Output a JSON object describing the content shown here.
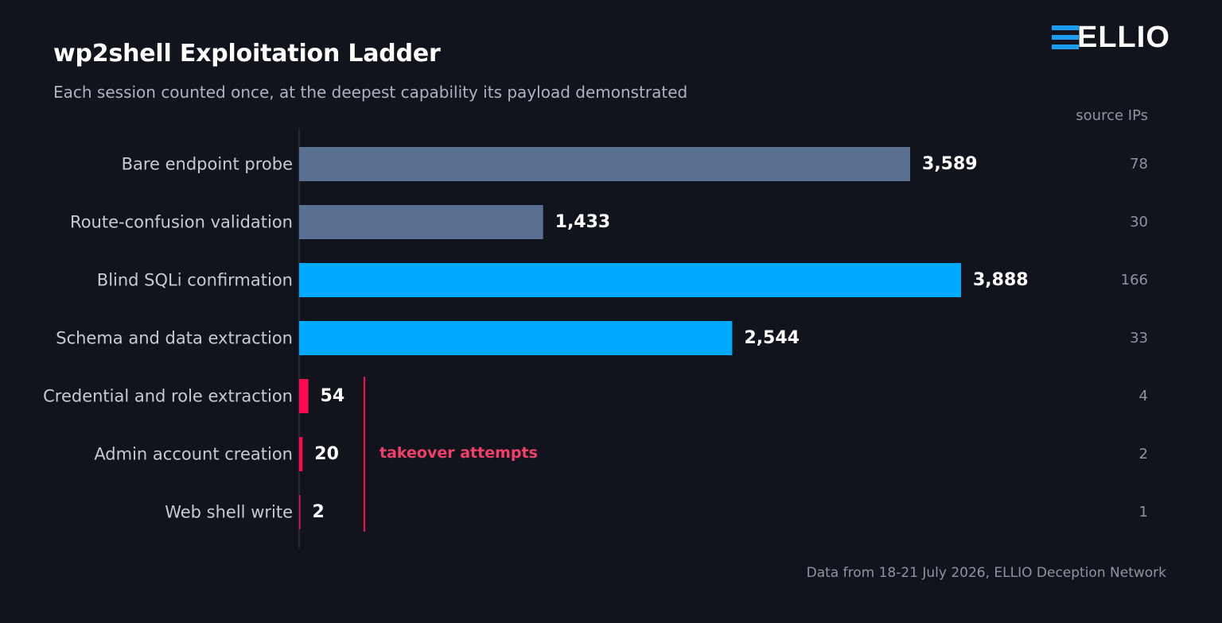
{
  "header": {
    "title": "wp2shell Exploitation Ladder",
    "subtitle": "Each session counted once, at the deepest capability its payload demonstrated"
  },
  "logo": {
    "text": "ELLIO"
  },
  "ips_column_label": "source IPs",
  "footer": "Data from 18-21 July 2026, ELLIO Deception Network",
  "annotation": {
    "label": "takeover attempts",
    "color": "#f0406a"
  },
  "colors": {
    "probe": "#5a7093",
    "sqli": "#00aaff",
    "takeover": "#ff0a4e",
    "label": "#c7cad2",
    "value": "#ffffff",
    "ips": "#8f93a0"
  },
  "chart_data": {
    "type": "bar",
    "orientation": "horizontal",
    "title": "wp2shell Exploitation Ladder",
    "subtitle": "Each session counted once, at the deepest capability its payload demonstrated",
    "categories": [
      "Bare endpoint probe",
      "Route-confusion validation",
      "Blind SQLi confirmation",
      "Schema and data extraction",
      "Credential and role extraction",
      "Admin account creation",
      "Web shell write"
    ],
    "values": [
      3589,
      1433,
      3888,
      2544,
      54,
      20,
      2
    ],
    "value_labels": [
      "3,589",
      "1,433",
      "3,888",
      "2,544",
      "54",
      "20",
      "2"
    ],
    "bar_groups": [
      "probe",
      "probe",
      "sqli",
      "sqli",
      "takeover",
      "takeover",
      "takeover"
    ],
    "source_ips": [
      78,
      30,
      166,
      33,
      4,
      2,
      1
    ],
    "xlim": [
      0,
      3888
    ],
    "grid": false,
    "legend": "none"
  }
}
